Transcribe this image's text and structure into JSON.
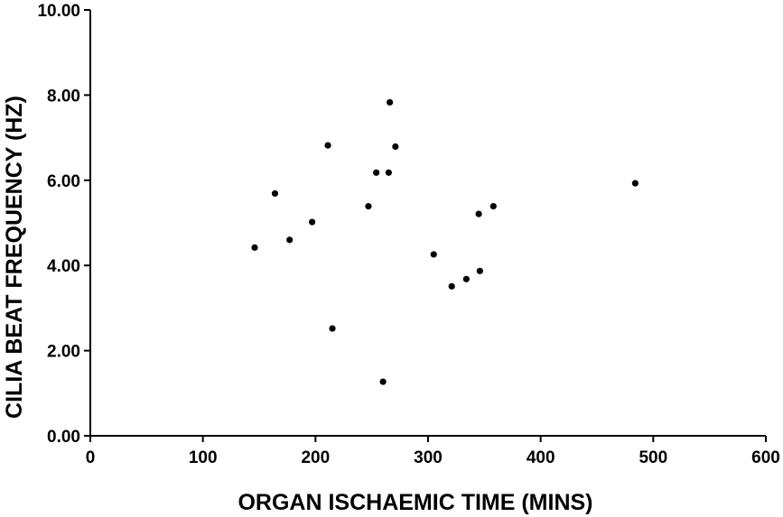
{
  "chart_data": {
    "type": "scatter",
    "xlabel": "ORGAN ISCHAEMIC TIME (MINS)",
    "ylabel": "CILIA BEAT FREQUENCY (HZ)",
    "xlim": [
      0,
      600
    ],
    "ylim": [
      0,
      10
    ],
    "x_ticks": [
      "0",
      "100",
      "200",
      "300",
      "400",
      "500",
      "600"
    ],
    "y_ticks": [
      "0.00",
      "2.00",
      "4.00",
      "6.00",
      "8.00",
      "10.00"
    ],
    "grid": false,
    "legend": "none",
    "marker_color": "#000000",
    "points": [
      {
        "x": 146,
        "y": 4.42
      },
      {
        "x": 164,
        "y": 5.69
      },
      {
        "x": 177,
        "y": 4.6
      },
      {
        "x": 197,
        "y": 5.02
      },
      {
        "x": 211,
        "y": 6.82
      },
      {
        "x": 215,
        "y": 2.52
      },
      {
        "x": 247,
        "y": 5.39
      },
      {
        "x": 254,
        "y": 6.18
      },
      {
        "x": 260,
        "y": 1.27
      },
      {
        "x": 265,
        "y": 6.18
      },
      {
        "x": 266,
        "y": 7.83
      },
      {
        "x": 271,
        "y": 6.79
      },
      {
        "x": 305,
        "y": 4.26
      },
      {
        "x": 321,
        "y": 3.51
      },
      {
        "x": 334,
        "y": 3.68
      },
      {
        "x": 345,
        "y": 5.21
      },
      {
        "x": 346,
        "y": 3.87
      },
      {
        "x": 358,
        "y": 5.39
      },
      {
        "x": 484,
        "y": 5.93
      }
    ]
  }
}
